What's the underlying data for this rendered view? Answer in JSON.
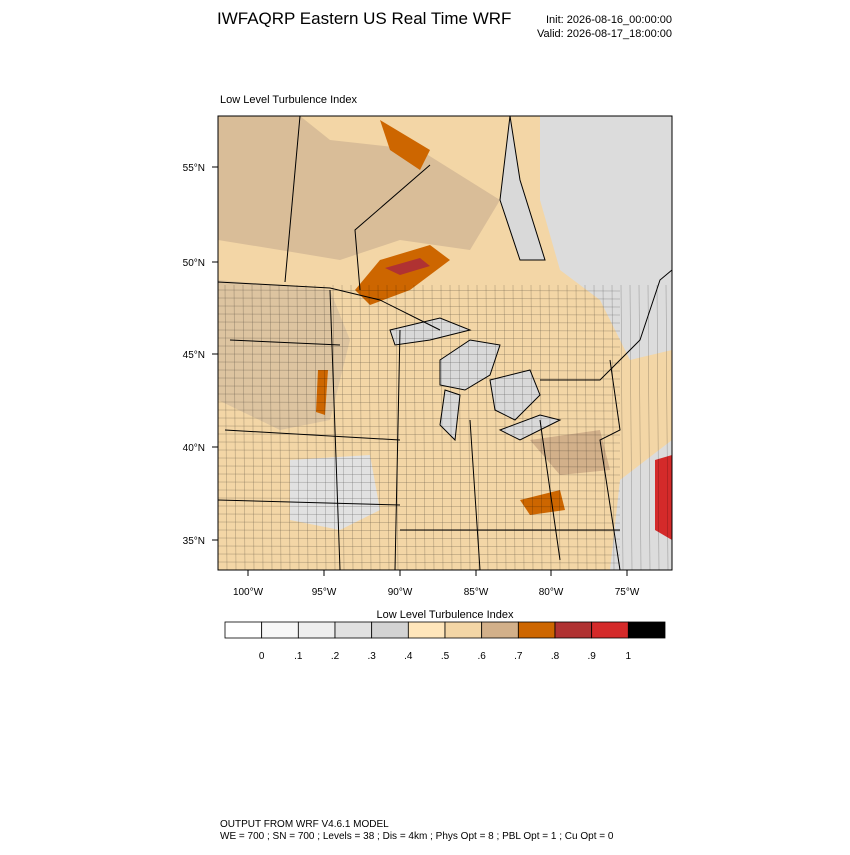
{
  "header": {
    "title": "IWFAQRP Eastern US Real Time WRF",
    "init": "Init: 2026-08-16_00:00:00",
    "valid": "Valid: 2026-08-17_18:00:00"
  },
  "map": {
    "title": "Low Level Turbulence Index",
    "lat_labels": [
      "55°N",
      "50°N",
      "45°N",
      "40°N",
      "35°N"
    ],
    "lon_labels": [
      "100°W",
      "95°W",
      "90°W",
      "85°W",
      "80°W",
      "75°W"
    ]
  },
  "colorbar": {
    "title": "Low Level Turbulence Index",
    "labels": [
      "0",
      ".1",
      ".2",
      ".3",
      ".4",
      ".5",
      ".6",
      ".7",
      ".8",
      ".9",
      "1"
    ],
    "colors": [
      "#ffffff",
      "#f7f7f7",
      "#eeeeee",
      "#e1e1e1",
      "#d3d3d3",
      "#ffe6bb",
      "#f3d6a6",
      "#d2b08a",
      "#cd6600",
      "#b03232",
      "#d42a2a",
      "#000000"
    ]
  },
  "footer": {
    "line1": "OUTPUT FROM WRF V4.6.1 MODEL",
    "line2": "WE = 700 ; SN = 700 ; Levels = 38 ; Dis = 4km ; Phys Opt = 8 ; PBL Opt = 1 ; Cu Opt = 0"
  }
}
